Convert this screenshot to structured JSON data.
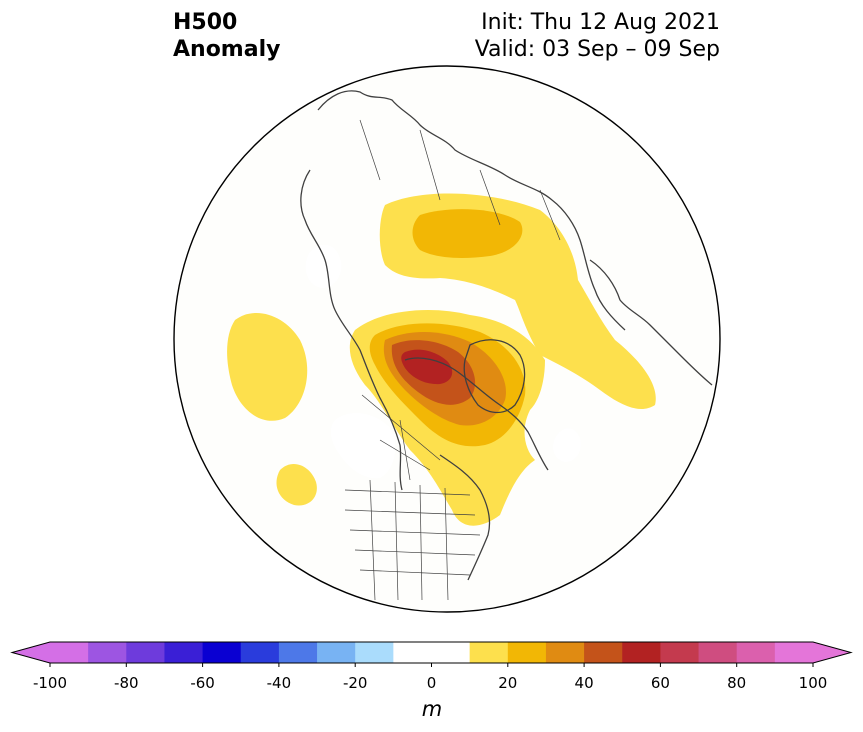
{
  "title": {
    "left_line1": "H500",
    "left_line2": "Anomaly",
    "right_line1": "Init: Thu 12 Aug 2021",
    "right_line2": "Valid: 03 Sep – 09 Sep"
  },
  "colorbar": {
    "unit": "m",
    "min": -100,
    "max": 100,
    "ticks": [
      -100,
      -80,
      -60,
      -40,
      -20,
      0,
      20,
      40,
      60,
      80,
      100
    ],
    "tick_labels": [
      "-100",
      "-80",
      "-60",
      "-40",
      "-20",
      "0",
      "20",
      "40",
      "60",
      "80",
      "100"
    ],
    "bins": [
      {
        "from": -100,
        "to": -90,
        "color": "#d46fe6"
      },
      {
        "from": -90,
        "to": -80,
        "color": "#9d55e2"
      },
      {
        "from": -80,
        "to": -70,
        "color": "#6e3bdc"
      },
      {
        "from": -70,
        "to": -60,
        "color": "#3a1fd6"
      },
      {
        "from": -60,
        "to": -50,
        "color": "#0a00d2"
      },
      {
        "from": -50,
        "to": -40,
        "color": "#2a3cdc"
      },
      {
        "from": -40,
        "to": -30,
        "color": "#4d78e8"
      },
      {
        "from": -30,
        "to": -20,
        "color": "#78b3f3"
      },
      {
        "from": -20,
        "to": -10,
        "color": "#aadcfc"
      },
      {
        "from": -10,
        "to": 0,
        "color": "#ffffff"
      },
      {
        "from": 0,
        "to": 10,
        "color": "#ffffff"
      },
      {
        "from": 10,
        "to": 20,
        "color": "#fde04d"
      },
      {
        "from": 20,
        "to": 30,
        "color": "#f2b705"
      },
      {
        "from": 30,
        "to": 40,
        "color": "#e08b12"
      },
      {
        "from": 40,
        "to": 50,
        "color": "#c4531a"
      },
      {
        "from": 50,
        "to": 60,
        "color": "#b22222"
      },
      {
        "from": 60,
        "to": 70,
        "color": "#c43a4e"
      },
      {
        "from": 70,
        "to": 80,
        "color": "#cf4d80"
      },
      {
        "from": 80,
        "to": 90,
        "color": "#db60ad"
      },
      {
        "from": 90,
        "to": 100,
        "color": "#e475d9"
      }
    ],
    "extend_low_color": "#d46fe6",
    "extend_high_color": "#e475d9"
  },
  "map": {
    "projection": "north-polar-stereographic",
    "background": "#fefefc",
    "coastline_color": "#404040",
    "anomaly_regions": [
      {
        "name": "siberia-arctic-ridge",
        "level": 10
      },
      {
        "name": "siberia-arctic-ridge-core",
        "level": 20
      },
      {
        "name": "north-pacific-ridge",
        "level": 10
      },
      {
        "name": "gulf-of-alaska-ridge",
        "level": 10
      },
      {
        "name": "canada-greenland-ridge",
        "level": 10
      },
      {
        "name": "canada-greenland-ridge-20",
        "level": 20
      },
      {
        "name": "canada-greenland-ridge-30",
        "level": 30
      },
      {
        "name": "canada-greenland-ridge-40",
        "level": 40
      },
      {
        "name": "canada-greenland-ridge-50",
        "level": 50
      },
      {
        "name": "east-asia-trough",
        "level": -10
      },
      {
        "name": "pacific-northwest-trough",
        "level": -10
      },
      {
        "name": "north-atlantic-trough",
        "level": -10
      }
    ]
  }
}
